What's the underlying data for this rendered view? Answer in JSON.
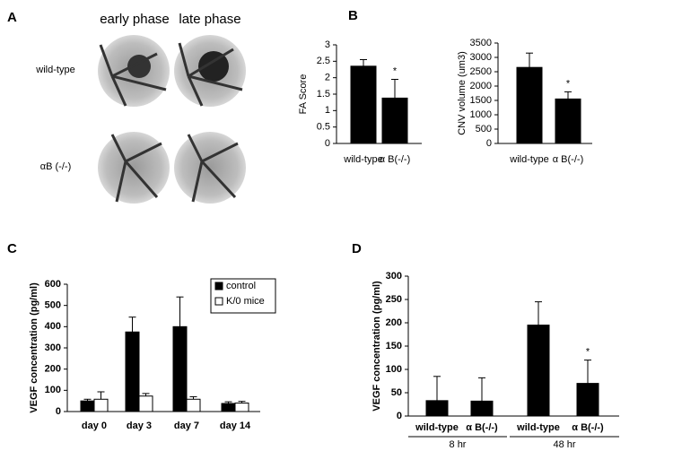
{
  "panel_labels": [
    "A",
    "B",
    "C",
    "D"
  ],
  "panel_a": {
    "columns": [
      "early phase",
      "late phase"
    ],
    "rows": [
      "wild-type",
      "αB (-/-)"
    ]
  },
  "chart_data": [
    {
      "type": "bar",
      "y_label": "FA Score",
      "categories": [
        "wild-type",
        "α B(-/-)"
      ],
      "values": [
        2.35,
        1.38
      ],
      "errors": [
        0.2,
        0.57
      ],
      "color": "#000000",
      "ylim": [
        0,
        3
      ],
      "yticks": [
        0,
        0.5,
        1,
        1.5,
        2,
        2.5,
        3
      ],
      "annotation": "*"
    },
    {
      "type": "bar",
      "y_label": "CNV volume (um3)",
      "categories": [
        "wild-type",
        "α B(-/-)"
      ],
      "values": [
        2650,
        1550
      ],
      "errors": [
        500,
        250
      ],
      "color": "#000000",
      "ylim": [
        0,
        3500
      ],
      "yticks": [
        0,
        500,
        1000,
        1500,
        2000,
        2500,
        3000,
        3500
      ],
      "annotation": "*"
    },
    {
      "type": "bar",
      "y_label": "VEGF concentration (pg/ml)",
      "categories": [
        "day 0",
        "day 3",
        "day 7",
        "day 14"
      ],
      "series": [
        {
          "name": "control",
          "color": "#000000",
          "values": [
            50,
            375,
            400,
            38
          ],
          "errors": [
            8,
            70,
            140,
            8
          ]
        },
        {
          "name": "K/0 mice",
          "color": "#ffffff",
          "values": [
            58,
            73,
            58,
            40
          ],
          "errors": [
            35,
            12,
            12,
            8
          ]
        }
      ],
      "ylim": [
        0,
        600
      ],
      "yticks": [
        0,
        100,
        200,
        300,
        400,
        500,
        600
      ]
    },
    {
      "type": "bar",
      "y_label": "VEGF concentration (pg/ml)",
      "categories": [
        "wild-type",
        "α B(-/-)",
        "wild-type",
        "α B(-/-)"
      ],
      "groups": [
        "8 hr",
        "48 hr"
      ],
      "values": [
        33,
        32,
        195,
        70
      ],
      "errors": [
        52,
        50,
        50,
        50
      ],
      "color": "#000000",
      "ylim": [
        0,
        300
      ],
      "yticks": [
        0,
        50,
        100,
        150,
        200,
        250,
        300
      ],
      "annotation": "*"
    }
  ]
}
